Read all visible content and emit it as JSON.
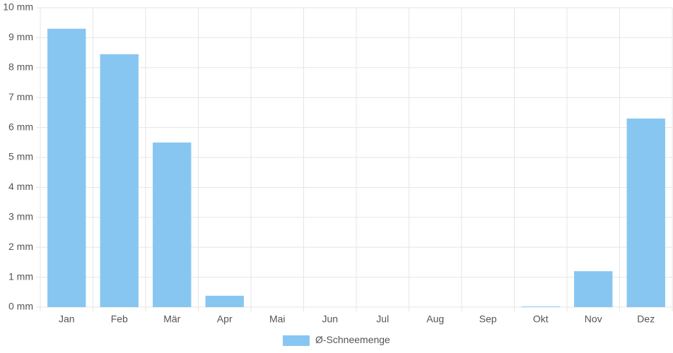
{
  "chart_data": {
    "type": "bar",
    "categories": [
      "Jan",
      "Feb",
      "Mär",
      "Apr",
      "Mai",
      "Jun",
      "Jul",
      "Aug",
      "Sep",
      "Okt",
      "Nov",
      "Dez"
    ],
    "series": [
      {
        "name": "Ø-Schneemenge",
        "color": "#88c6f2",
        "values": [
          9.3,
          8.45,
          5.5,
          0.38,
          0,
          0,
          0,
          0,
          0,
          0.02,
          1.2,
          6.3
        ]
      }
    ],
    "ylim": [
      0,
      10
    ],
    "yticks": [
      {
        "value": 0,
        "label": "0 mm"
      },
      {
        "value": 1,
        "label": "1 mm"
      },
      {
        "value": 2,
        "label": "2 mm"
      },
      {
        "value": 3,
        "label": "3 mm"
      },
      {
        "value": 4,
        "label": "4 mm"
      },
      {
        "value": 5,
        "label": "5 mm"
      },
      {
        "value": 6,
        "label": "6 mm"
      },
      {
        "value": 7,
        "label": "7 mm"
      },
      {
        "value": 8,
        "label": "8 mm"
      },
      {
        "value": 9,
        "label": "9 mm"
      },
      {
        "value": 10,
        "label": "10 mm"
      }
    ],
    "grid": true,
    "legend": "bottom"
  }
}
